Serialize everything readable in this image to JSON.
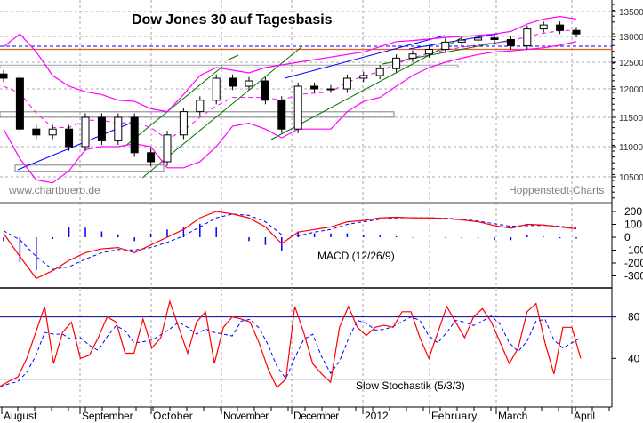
{
  "chart_data": [
    {
      "type": "candlestick",
      "title": "Dow Jones 30 auf Tagesbasis",
      "watermark_left": "www.chartbuero.de",
      "watermark_right": "Hoppenstedt-Charts",
      "y_ticks": [
        10500,
        11000,
        11500,
        12000,
        12500,
        13000,
        13500
      ],
      "ylim": [
        10300,
        13700
      ],
      "grid": true,
      "dates": [
        "2011-08-01",
        "2011-08-08",
        "2011-08-15",
        "2011-08-22",
        "2011-08-29",
        "2011-09-05",
        "2011-09-12",
        "2011-09-19",
        "2011-09-26",
        "2011-10-03",
        "2011-10-10",
        "2011-10-17",
        "2011-10-24",
        "2011-10-31",
        "2011-11-07",
        "2011-11-14",
        "2011-11-21",
        "2011-11-28",
        "2011-12-05",
        "2011-12-12",
        "2011-12-19",
        "2011-12-26",
        "2012-01-02",
        "2012-01-09",
        "2012-01-16",
        "2012-01-23",
        "2012-01-30",
        "2012-02-06",
        "2012-02-13",
        "2012-02-20",
        "2012-02-27",
        "2012-03-05",
        "2012-03-12",
        "2012-03-19",
        "2012-03-26",
        "2012-04-02"
      ],
      "close": [
        12200,
        11300,
        11200,
        11300,
        11000,
        11500,
        11100,
        11500,
        10900,
        10750,
        11200,
        11600,
        11800,
        12200,
        12050,
        12150,
        11800,
        11300,
        12050,
        12000,
        12000,
        12200,
        12250,
        12380,
        12580,
        12660,
        12750,
        12890,
        12930,
        12970,
        12940,
        12820,
        13150,
        13230,
        13120,
        13050
      ],
      "bollinger_upper": [
        12800,
        13050,
        12700,
        12250,
        12050,
        11950,
        11900,
        11800,
        11780,
        11650,
        11600,
        11900,
        12250,
        12400,
        12350,
        12300,
        12400,
        12450,
        12500,
        12550,
        12600,
        12650,
        12700,
        12800,
        12900,
        12920,
        12950,
        12980,
        13000,
        13020,
        13050,
        13100,
        13250,
        13350,
        13400,
        13350
      ],
      "bollinger_lower": [
        11300,
        10800,
        10450,
        10400,
        10600,
        10950,
        11000,
        11000,
        11050,
        11000,
        10650,
        10650,
        10750,
        11000,
        11350,
        11400,
        11300,
        11150,
        11300,
        11300,
        11300,
        11600,
        11780,
        11850,
        12050,
        12250,
        12400,
        12500,
        12580,
        12650,
        12700,
        12720,
        12750,
        12780,
        12830,
        12900
      ],
      "levels": [
        {
          "price": 12810,
          "color": "#0000ff",
          "style": "dashed"
        },
        {
          "price": 12750,
          "color": "#e06020",
          "style": "solid"
        },
        {
          "price": 12420,
          "color": "#a0a0a0",
          "style": "band"
        },
        {
          "price": 11550,
          "color": "#808080",
          "style": "band"
        },
        {
          "price": 10650,
          "color": "#808080",
          "style": "band"
        }
      ],
      "colors": {
        "candle": "#000000",
        "bollinger": "#ff00ff",
        "trend_blue": "#0000ff",
        "trend_green": "#007000"
      }
    },
    {
      "type": "line",
      "label": "MACD (12/26/9)",
      "y_ticks": [
        200,
        100,
        0,
        -100,
        -200,
        -300
      ],
      "macd": [
        30,
        -150,
        -320,
        -260,
        -180,
        -120,
        -90,
        -80,
        -120,
        -60,
        0,
        60,
        150,
        200,
        180,
        150,
        80,
        -50,
        40,
        60,
        80,
        120,
        130,
        150,
        155,
        150,
        150,
        145,
        135,
        120,
        90,
        70,
        100,
        95,
        80,
        65
      ],
      "signal": [
        50,
        -20,
        -150,
        -250,
        -230,
        -170,
        -120,
        -95,
        -100,
        -80,
        -40,
        10,
        80,
        150,
        180,
        170,
        120,
        20,
        10,
        40,
        60,
        100,
        120,
        140,
        150,
        152,
        150,
        148,
        140,
        125,
        105,
        85,
        90,
        92,
        85,
        72
      ],
      "colors": {
        "macd": "#ff0000",
        "signal": "#0000ff",
        "histogram": "#0000ff"
      }
    },
    {
      "type": "line",
      "label": "Slow Stochastik (5/3/3)",
      "y_ticks": [
        80,
        40
      ],
      "levels": [
        80,
        20
      ],
      "k": [
        13,
        18,
        22,
        40,
        65,
        90,
        35,
        65,
        75,
        40,
        43,
        60,
        80,
        75,
        45,
        45,
        78,
        50,
        60,
        95,
        70,
        45,
        75,
        85,
        35,
        70,
        80,
        78,
        75,
        55,
        30,
        12,
        20,
        90,
        65,
        35,
        25,
        17,
        70,
        90,
        70,
        62,
        70,
        72,
        70,
        85,
        85,
        60,
        40,
        65,
        90,
        75,
        60,
        80,
        88,
        75,
        55,
        35,
        50,
        85,
        93,
        55,
        25,
        70,
        70,
        40
      ],
      "colors": {
        "k": "#ff0000",
        "d": "#0000ff"
      }
    }
  ],
  "x_axis": {
    "months": [
      "August",
      "September",
      "October",
      "November",
      "December",
      "2012",
      "February",
      "March",
      "April"
    ]
  }
}
